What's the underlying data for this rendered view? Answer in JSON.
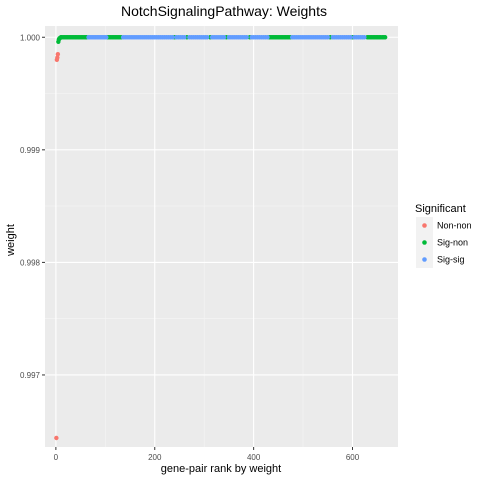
{
  "chart_data": {
    "type": "scatter",
    "title": "NotchSignalingPathway: Weights",
    "xlabel": "gene-pair rank by weight",
    "ylabel": "weight",
    "xlim": [
      -22,
      692
    ],
    "ylim": [
      0.99636,
      1.0001
    ],
    "x_ticks": [
      0,
      200,
      400,
      600
    ],
    "x_tick_labels": [
      "0",
      "200",
      "400",
      "600"
    ],
    "y_ticks": [
      0.997,
      0.998,
      0.999,
      1.0
    ],
    "y_tick_labels": [
      "0.997",
      "0.998",
      "0.999",
      "1.000"
    ],
    "grid": true,
    "legend": {
      "title": "Significant",
      "position": "right",
      "entries": [
        {
          "label": "Non-non",
          "color": "#F8766D"
        },
        {
          "label": "Sig-non",
          "color": "#00BA38"
        },
        {
          "label": "Sig-sig",
          "color": "#619CFF"
        }
      ]
    },
    "series": [
      {
        "name": "Non-non",
        "color": "#F8766D",
        "points": [
          [
            1,
            0.99644
          ],
          [
            2,
            0.9998
          ],
          [
            3,
            0.99982
          ],
          [
            4,
            0.99985
          ]
        ]
      },
      {
        "name": "Sig-non",
        "color": "#00BA38",
        "points": [
          [
            5,
            0.99996
          ],
          [
            6,
            0.99998
          ],
          [
            7,
            0.99999
          ],
          [
            8,
            0.99999
          ],
          [
            10,
            1.0
          ],
          [
            12,
            1.0
          ],
          [
            15,
            1.0
          ],
          [
            18,
            1.0
          ],
          [
            21,
            1.0
          ],
          [
            24,
            1.0
          ],
          [
            27,
            1.0
          ],
          [
            30,
            1.0
          ],
          [
            33,
            1.0
          ],
          [
            36,
            1.0
          ],
          [
            39,
            1.0
          ],
          [
            42,
            1.0
          ],
          [
            45,
            1.0
          ],
          [
            48,
            1.0
          ],
          [
            51,
            1.0
          ],
          [
            54,
            1.0
          ],
          [
            57,
            1.0
          ],
          [
            60,
            1.0
          ],
          [
            62,
            1.0
          ],
          [
            105,
            1.0
          ],
          [
            108,
            1.0
          ],
          [
            111,
            1.0
          ],
          [
            114,
            1.0
          ],
          [
            117,
            1.0
          ],
          [
            120,
            1.0
          ],
          [
            123,
            1.0
          ],
          [
            126,
            1.0
          ],
          [
            129,
            1.0
          ],
          [
            132,
            1.0
          ],
          [
            240,
            1.0
          ],
          [
            265,
            1.0
          ],
          [
            312,
            1.0
          ],
          [
            345,
            1.0
          ],
          [
            392,
            1.0
          ],
          [
            432,
            1.0
          ],
          [
            435,
            1.0
          ],
          [
            438,
            1.0
          ],
          [
            441,
            1.0
          ],
          [
            444,
            1.0
          ],
          [
            447,
            1.0
          ],
          [
            450,
            1.0
          ],
          [
            453,
            1.0
          ],
          [
            456,
            1.0
          ],
          [
            459,
            1.0
          ],
          [
            462,
            1.0
          ],
          [
            465,
            1.0
          ],
          [
            468,
            1.0
          ],
          [
            471,
            1.0
          ],
          [
            474,
            1.0
          ],
          [
            555,
            1.0
          ],
          [
            600,
            1.0
          ],
          [
            630,
            1.0
          ],
          [
            633,
            1.0
          ],
          [
            636,
            1.0
          ],
          [
            639,
            1.0
          ],
          [
            642,
            1.0
          ],
          [
            645,
            1.0
          ],
          [
            648,
            1.0
          ],
          [
            651,
            1.0
          ],
          [
            654,
            1.0
          ],
          [
            657,
            1.0
          ],
          [
            660,
            1.0
          ],
          [
            663,
            1.0
          ],
          [
            666,
            1.0
          ]
        ]
      },
      {
        "name": "Sig-sig",
        "color": "#619CFF",
        "points": [
          [
            66,
            1.0
          ],
          [
            69,
            1.0
          ],
          [
            72,
            1.0
          ],
          [
            75,
            1.0
          ],
          [
            78,
            1.0
          ],
          [
            81,
            1.0
          ],
          [
            84,
            1.0
          ],
          [
            87,
            1.0
          ],
          [
            90,
            1.0
          ],
          [
            93,
            1.0
          ],
          [
            96,
            1.0
          ],
          [
            99,
            1.0
          ],
          [
            102,
            1.0
          ],
          [
            136,
            1.0
          ],
          [
            140,
            1.0
          ],
          [
            144,
            1.0
          ],
          [
            148,
            1.0
          ],
          [
            152,
            1.0
          ],
          [
            156,
            1.0
          ],
          [
            160,
            1.0
          ],
          [
            164,
            1.0
          ],
          [
            168,
            1.0
          ],
          [
            172,
            1.0
          ],
          [
            176,
            1.0
          ],
          [
            180,
            1.0
          ],
          [
            184,
            1.0
          ],
          [
            188,
            1.0
          ],
          [
            192,
            1.0
          ],
          [
            196,
            1.0
          ],
          [
            200,
            1.0
          ],
          [
            204,
            1.0
          ],
          [
            208,
            1.0
          ],
          [
            212,
            1.0
          ],
          [
            216,
            1.0
          ],
          [
            220,
            1.0
          ],
          [
            224,
            1.0
          ],
          [
            228,
            1.0
          ],
          [
            232,
            1.0
          ],
          [
            236,
            1.0
          ],
          [
            244,
            1.0
          ],
          [
            248,
            1.0
          ],
          [
            252,
            1.0
          ],
          [
            256,
            1.0
          ],
          [
            260,
            1.0
          ],
          [
            270,
            1.0
          ],
          [
            274,
            1.0
          ],
          [
            278,
            1.0
          ],
          [
            282,
            1.0
          ],
          [
            286,
            1.0
          ],
          [
            290,
            1.0
          ],
          [
            294,
            1.0
          ],
          [
            298,
            1.0
          ],
          [
            302,
            1.0
          ],
          [
            306,
            1.0
          ],
          [
            316,
            1.0
          ],
          [
            320,
            1.0
          ],
          [
            324,
            1.0
          ],
          [
            328,
            1.0
          ],
          [
            332,
            1.0
          ],
          [
            336,
            1.0
          ],
          [
            340,
            1.0
          ],
          [
            350,
            1.0
          ],
          [
            354,
            1.0
          ],
          [
            358,
            1.0
          ],
          [
            362,
            1.0
          ],
          [
            366,
            1.0
          ],
          [
            370,
            1.0
          ],
          [
            374,
            1.0
          ],
          [
            378,
            1.0
          ],
          [
            382,
            1.0
          ],
          [
            386,
            1.0
          ],
          [
            396,
            1.0
          ],
          [
            400,
            1.0
          ],
          [
            404,
            1.0
          ],
          [
            408,
            1.0
          ],
          [
            412,
            1.0
          ],
          [
            416,
            1.0
          ],
          [
            420,
            1.0
          ],
          [
            424,
            1.0
          ],
          [
            428,
            1.0
          ],
          [
            478,
            1.0
          ],
          [
            482,
            1.0
          ],
          [
            486,
            1.0
          ],
          [
            490,
            1.0
          ],
          [
            494,
            1.0
          ],
          [
            498,
            1.0
          ],
          [
            502,
            1.0
          ],
          [
            506,
            1.0
          ],
          [
            510,
            1.0
          ],
          [
            514,
            1.0
          ],
          [
            518,
            1.0
          ],
          [
            522,
            1.0
          ],
          [
            526,
            1.0
          ],
          [
            530,
            1.0
          ],
          [
            534,
            1.0
          ],
          [
            538,
            1.0
          ],
          [
            542,
            1.0
          ],
          [
            546,
            1.0
          ],
          [
            550,
            1.0
          ],
          [
            560,
            1.0
          ],
          [
            564,
            1.0
          ],
          [
            568,
            1.0
          ],
          [
            572,
            1.0
          ],
          [
            576,
            1.0
          ],
          [
            580,
            1.0
          ],
          [
            584,
            1.0
          ],
          [
            588,
            1.0
          ],
          [
            592,
            1.0
          ],
          [
            596,
            1.0
          ],
          [
            604,
            1.0
          ],
          [
            608,
            1.0
          ],
          [
            612,
            1.0
          ],
          [
            616,
            1.0
          ],
          [
            620,
            1.0
          ],
          [
            624,
            1.0
          ]
        ]
      }
    ]
  }
}
